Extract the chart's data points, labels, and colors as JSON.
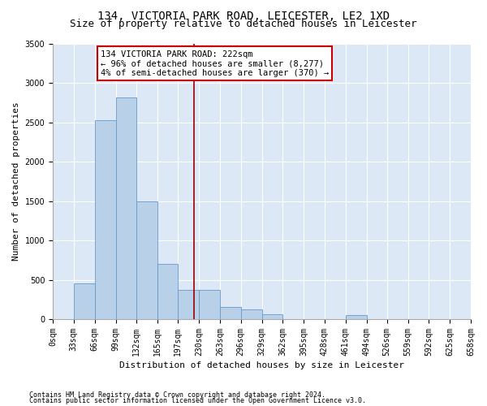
{
  "title1": "134, VICTORIA PARK ROAD, LEICESTER, LE2 1XD",
  "title2": "Size of property relative to detached houses in Leicester",
  "xlabel": "Distribution of detached houses by size in Leicester",
  "ylabel": "Number of detached properties",
  "footer1": "Contains HM Land Registry data © Crown copyright and database right 2024.",
  "footer2": "Contains public sector information licensed under the Open Government Licence v3.0.",
  "annotation_line1": "134 VICTORIA PARK ROAD: 222sqm",
  "annotation_line2": "← 96% of detached houses are smaller (8,277)",
  "annotation_line3": "4% of semi-detached houses are larger (370) →",
  "property_size": 222,
  "bar_left_edges": [
    0,
    33,
    66,
    99,
    132,
    165,
    197,
    230,
    263,
    296,
    329,
    362,
    395,
    428,
    461,
    494,
    526,
    559,
    592,
    625
  ],
  "bar_widths": [
    33,
    33,
    33,
    33,
    33,
    32,
    33,
    33,
    33,
    33,
    33,
    33,
    33,
    33,
    33,
    32,
    33,
    33,
    33,
    33
  ],
  "bar_heights": [
    5,
    450,
    2530,
    2820,
    1500,
    700,
    370,
    370,
    160,
    120,
    60,
    0,
    0,
    0,
    50,
    0,
    0,
    0,
    0,
    0
  ],
  "bar_color": "#b8d0e8",
  "bar_edge_color": "#6699cc",
  "vline_color": "#990000",
  "vline_x": 222,
  "ylim": [
    0,
    3500
  ],
  "yticks": [
    0,
    500,
    1000,
    1500,
    2000,
    2500,
    3000,
    3500
  ],
  "xtick_labels": [
    "0sqm",
    "33sqm",
    "66sqm",
    "99sqm",
    "132sqm",
    "165sqm",
    "197sqm",
    "230sqm",
    "263sqm",
    "296sqm",
    "329sqm",
    "362sqm",
    "395sqm",
    "428sqm",
    "461sqm",
    "494sqm",
    "526sqm",
    "559sqm",
    "592sqm",
    "625sqm",
    "658sqm"
  ],
  "xtick_positions": [
    0,
    33,
    66,
    99,
    132,
    165,
    197,
    230,
    263,
    296,
    329,
    362,
    395,
    428,
    461,
    494,
    526,
    559,
    592,
    625,
    658
  ],
  "xlim": [
    0,
    658
  ],
  "bg_color": "#dce8f5",
  "box_facecolor": "#ffffff",
  "box_edgecolor": "#cc0000",
  "title_fontsize": 10,
  "subtitle_fontsize": 9,
  "annotation_fontsize": 7.5,
  "ylabel_fontsize": 8,
  "xlabel_fontsize": 8,
  "tick_fontsize": 7,
  "footer_fontsize": 6
}
